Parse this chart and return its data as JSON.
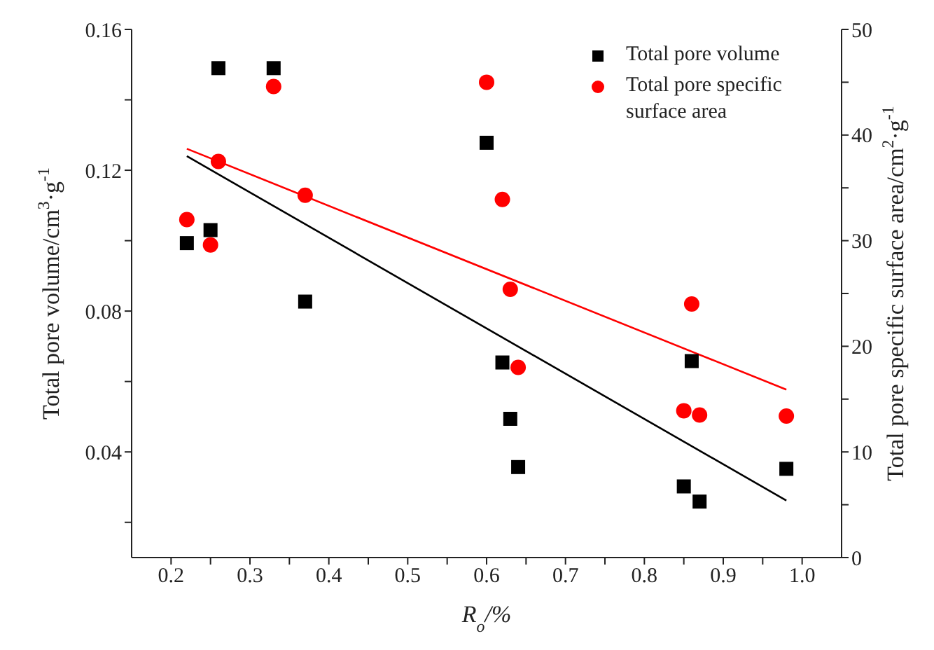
{
  "chart_data": {
    "type": "scatter",
    "xlabel": "R$_{o}$/%",
    "ylabel": "Total pore volume/cm$^{3}$·g$^{-1}$",
    "y2label": "Total pore specific surface area/cm$^{2}$·g$^{-1}$",
    "legend": "top right",
    "xlim": [
      0.15,
      1.05
    ],
    "xticks": [
      0.2,
      {
        "value": 0.25,
        "label": null
      },
      0.3,
      {
        "value": 0.35,
        "label": null
      },
      0.4,
      {
        "value": 0.45,
        "label": null
      },
      0.5,
      {
        "value": 0.55,
        "label": null
      },
      0.6,
      {
        "value": 0.65,
        "label": null
      },
      0.7,
      {
        "value": 0.75,
        "label": null
      },
      0.8,
      {
        "value": 0.85,
        "label": null
      },
      0.9,
      {
        "value": 0.95,
        "label": null
      },
      {
        "value": 1,
        "label": "1.0"
      }
    ],
    "ylim": [
      0.01,
      0.16
    ],
    "yticks": [
      {
        "value": 0.02,
        "label": null
      },
      0.04,
      {
        "value": 0.06,
        "label": null
      },
      0.08,
      {
        "value": 0.1,
        "label": null
      },
      0.12,
      {
        "value": 0.14,
        "label": null
      },
      0.16
    ],
    "y2lim": [
      0,
      50
    ],
    "y2ticks": [
      0,
      {
        "value": 5,
        "label": null
      },
      10,
      {
        "value": 15,
        "label": null
      },
      20,
      {
        "value": 25,
        "label": null
      },
      30,
      {
        "value": 35,
        "label": null
      },
      40,
      {
        "value": 45,
        "label": null
      },
      50
    ],
    "series": [
      {
        "name": "Total pore volume",
        "type": "scatter",
        "color": "#000000",
        "marker": "square",
        "x": [
          0.22,
          0.25,
          0.26,
          0.33,
          0.37,
          0.6,
          0.62,
          0.63,
          0.64,
          0.85,
          0.86,
          0.87,
          0.98
        ],
        "values": [
          0.0993,
          0.103,
          0.149,
          0.149,
          0.0827,
          0.1278,
          0.0654,
          0.0494,
          0.0357,
          0.0302,
          0.0658,
          0.0259,
          0.0352
        ]
      },
      {
        "name": "Total pore specific surface area",
        "type": "scatter",
        "color": "#ff0000",
        "marker": "circle",
        "axis": "y2",
        "x": [
          0.22,
          0.25,
          0.26,
          0.33,
          0.37,
          0.6,
          0.62,
          0.63,
          0.64,
          0.85,
          0.86,
          0.87,
          0.98
        ],
        "values": [
          32.0,
          29.6,
          37.5,
          44.6,
          34.3,
          45.0,
          33.9,
          25.4,
          18.0,
          13.9,
          24.0,
          13.5,
          13.4
        ]
      },
      {
        "type": "line",
        "color": "#000000",
        "marker": "none",
        "x": [
          0.22,
          0.98
        ],
        "values": [
          0.124,
          0.0262
        ]
      },
      {
        "type": "line",
        "color": "#ff0000",
        "marker": "none",
        "axis": "y2",
        "x": [
          0.22,
          0.98
        ],
        "values": [
          38.7,
          15.9
        ]
      }
    ]
  }
}
